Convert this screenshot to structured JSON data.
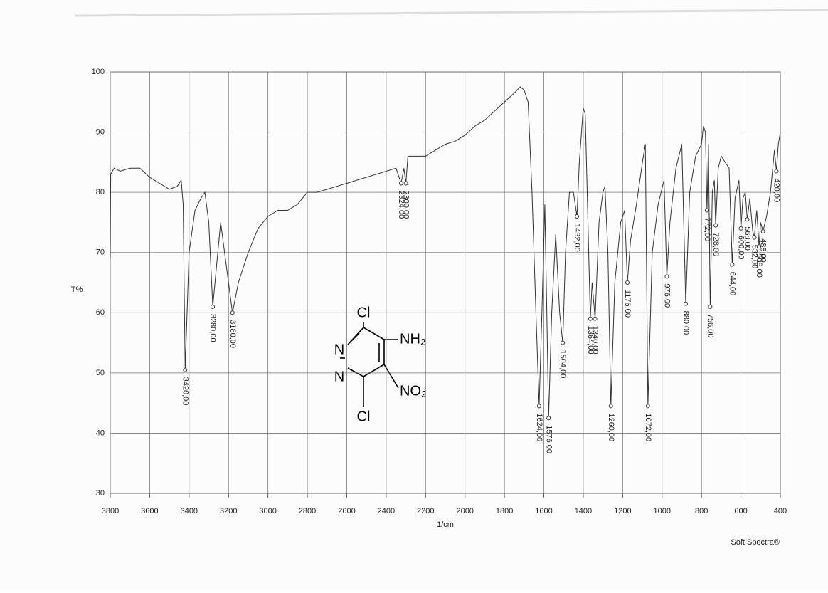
{
  "chart_data": {
    "type": "line",
    "ylabel": "T%",
    "xlabel": "1/cm",
    "footer": "Soft Spectra®",
    "xlim": [
      3800,
      400
    ],
    "ylim": [
      30,
      100
    ],
    "xticks": [
      3800,
      3600,
      3400,
      3200,
      3000,
      2800,
      2600,
      2400,
      2200,
      2000,
      1800,
      1600,
      1400,
      1200,
      1000,
      800,
      600,
      400
    ],
    "yticks": [
      30,
      40,
      50,
      60,
      70,
      80,
      90,
      100
    ],
    "grid": true,
    "color": "#333333",
    "x": [
      3800,
      3798,
      3780,
      3750,
      3700,
      3650,
      3600,
      3550,
      3500,
      3460,
      3440,
      3430,
      3420,
      3400,
      3370,
      3340,
      3320,
      3300,
      3280,
      3260,
      3240,
      3220,
      3180,
      3150,
      3100,
      3050,
      3000,
      2950,
      2900,
      2850,
      2800,
      2750,
      2700,
      2650,
      2600,
      2550,
      2500,
      2450,
      2400,
      2350,
      2324,
      2310,
      2300,
      2290,
      2250,
      2200,
      2150,
      2100,
      2050,
      2000,
      1950,
      1900,
      1850,
      1800,
      1750,
      1720,
      1700,
      1680,
      1660,
      1640,
      1624,
      1610,
      1595,
      1585,
      1576,
      1560,
      1540,
      1520,
      1504,
      1490,
      1470,
      1450,
      1432,
      1420,
      1400,
      1390,
      1380,
      1364,
      1355,
      1340,
      1320,
      1300,
      1290,
      1275,
      1260,
      1240,
      1210,
      1190,
      1176,
      1160,
      1130,
      1100,
      1085,
      1072,
      1050,
      1020,
      990,
      976,
      960,
      930,
      900,
      880,
      860,
      830,
      800,
      790,
      780,
      772,
      765,
      756,
      745,
      735,
      728,
      715,
      700,
      680,
      660,
      644,
      630,
      610,
      600,
      590,
      578,
      568,
      555,
      540,
      532,
      520,
      508,
      500,
      488,
      470,
      450,
      430,
      420,
      410,
      400
    ],
    "y": [
      69,
      83,
      84,
      83.5,
      84,
      84,
      82.5,
      81.5,
      80.5,
      81,
      82,
      78,
      50.5,
      70,
      77,
      79,
      80,
      75,
      61,
      68,
      75,
      70,
      60,
      65,
      70,
      74,
      76,
      77,
      77,
      78,
      80,
      80,
      80.5,
      81,
      81.5,
      82,
      82.5,
      83,
      83.5,
      84,
      81.5,
      84,
      81.5,
      86,
      86,
      86,
      87,
      88,
      88.5,
      89.5,
      91,
      92,
      93.5,
      95,
      96.5,
      97.5,
      97,
      95,
      80,
      60,
      44.5,
      60,
      78,
      60,
      42.5,
      60,
      73,
      60,
      55,
      70,
      80,
      80,
      76,
      85,
      94,
      93,
      80,
      59,
      65,
      59,
      75,
      80,
      81,
      70,
      44.5,
      65,
      75,
      77,
      65,
      72,
      78,
      85,
      88,
      44.5,
      70,
      78,
      82,
      66,
      75,
      84,
      88,
      61.5,
      80,
      86,
      88,
      91,
      90,
      77,
      88,
      61,
      80,
      82,
      74.5,
      84,
      86,
      85,
      84,
      68,
      79,
      82,
      74,
      79,
      80,
      75.5,
      79,
      73.5,
      72.5,
      77,
      71,
      75,
      73.5,
      76,
      80,
      87,
      83.5,
      88,
      90
    ],
    "peaks": [
      3420,
      3280,
      3180,
      2324,
      2300,
      1624,
      1576,
      1504,
      1432,
      1364,
      1340,
      1260,
      1176,
      1072,
      976,
      880,
      772,
      756,
      728,
      644,
      600,
      568,
      532,
      508,
      488,
      420
    ],
    "peak_t": [
      50.5,
      61,
      60,
      81.5,
      81.5,
      44.5,
      42.5,
      55,
      76,
      59,
      59,
      44.5,
      65,
      44.5,
      66,
      61.5,
      77,
      61,
      74.5,
      68,
      74,
      75.5,
      72.5,
      71,
      73.5,
      83.5
    ],
    "peak_labels": [
      "3420,00",
      "3280,00",
      "3180,00",
      "2324,00",
      "2300,00",
      "1624,00",
      "1576,00",
      "1504,00",
      "1432,00",
      "1364,00",
      "1340,00",
      "1260,00",
      "1176,00",
      "1072,00",
      "976,00",
      "880,00",
      "772,00",
      "756,00",
      "728,00",
      "644,00",
      "600,00",
      "568,00",
      "532,00",
      "508,00",
      "488,00",
      "420,00"
    ]
  },
  "structure": {
    "atoms": [
      "Cl",
      "NH₂",
      "N",
      "N",
      "NO₂",
      "Cl"
    ]
  }
}
